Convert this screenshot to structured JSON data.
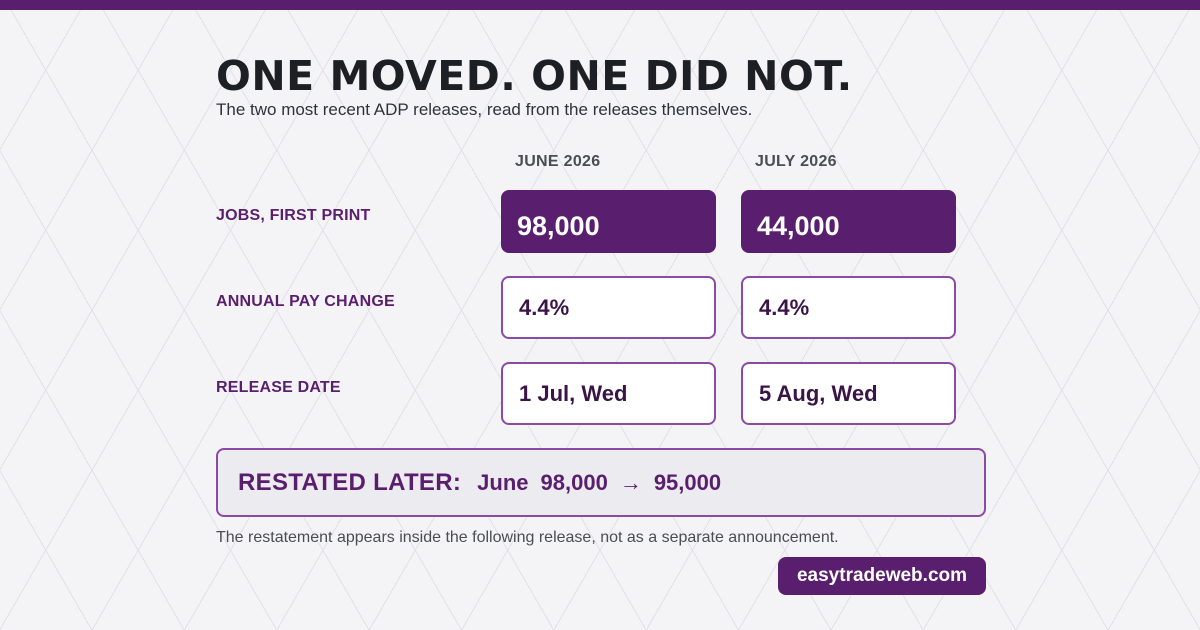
{
  "headline": "ONE MOVED. ONE DID NOT.",
  "subhead": "The two most recent ADP releases, read from the releases themselves.",
  "columns": [
    "JUNE 2026",
    "JULY 2026"
  ],
  "rows": [
    {
      "label": "JOBS, FIRST PRINT",
      "values": [
        "98,000",
        "44,000"
      ]
    },
    {
      "label": "ANNUAL PAY CHANGE",
      "values": [
        "4.4%",
        "4.4%"
      ]
    },
    {
      "label": "RELEASE DATE",
      "values": [
        "1 Jul, Wed",
        "5 Aug, Wed"
      ]
    }
  ],
  "restated": {
    "label": "RESTATED LATER:",
    "month": "June",
    "from": "98,000",
    "arrow": "→",
    "to": "95,000"
  },
  "footnote": "The restatement appears inside the following release, not as a separate announcement.",
  "brand": "easytradeweb.com",
  "colors": {
    "accent": "#5a1e6e",
    "border": "#8a4aa6",
    "text": "#1c1f24"
  }
}
